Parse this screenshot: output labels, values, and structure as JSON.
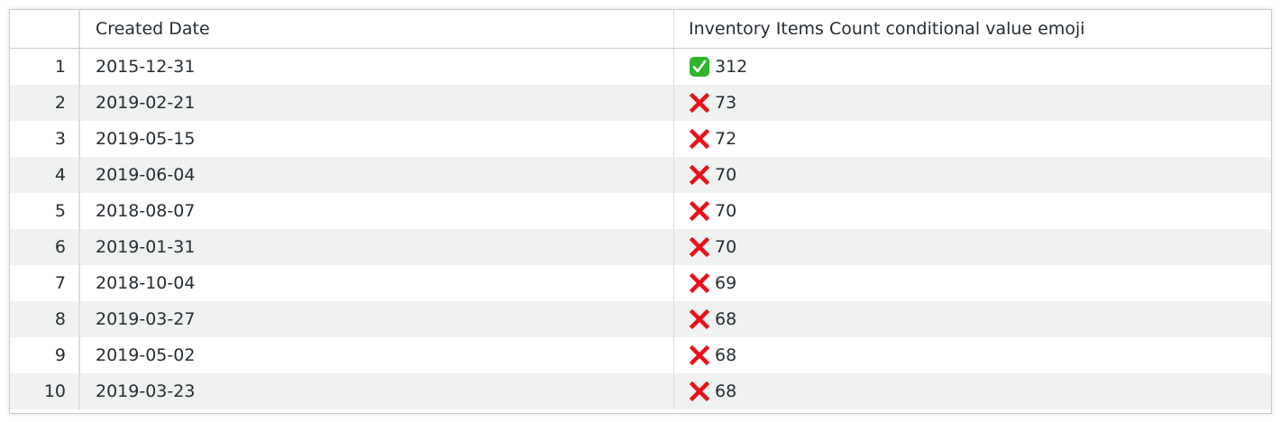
{
  "table": {
    "columns": [
      "",
      "Created Date",
      "Inventory Items Count conditional value emoji"
    ],
    "rows": [
      {
        "index": "1",
        "date": "2015-12-31",
        "icon": "check-mark-button-icon",
        "value": "312"
      },
      {
        "index": "2",
        "date": "2019-02-21",
        "icon": "cross-mark-icon",
        "value": "73"
      },
      {
        "index": "3",
        "date": "2019-05-15",
        "icon": "cross-mark-icon",
        "value": "72"
      },
      {
        "index": "4",
        "date": "2019-06-04",
        "icon": "cross-mark-icon",
        "value": "70"
      },
      {
        "index": "5",
        "date": "2018-08-07",
        "icon": "cross-mark-icon",
        "value": "70"
      },
      {
        "index": "6",
        "date": "2019-01-31",
        "icon": "cross-mark-icon",
        "value": "70"
      },
      {
        "index": "7",
        "date": "2018-10-04",
        "icon": "cross-mark-icon",
        "value": "69"
      },
      {
        "index": "8",
        "date": "2019-03-27",
        "icon": "cross-mark-icon",
        "value": "68"
      },
      {
        "index": "9",
        "date": "2019-05-02",
        "icon": "cross-mark-icon",
        "value": "68"
      },
      {
        "index": "10",
        "date": "2019-03-23",
        "icon": "cross-mark-icon",
        "value": "68"
      }
    ]
  },
  "colors": {
    "check": "#2fb52b",
    "cross": "#e8101c",
    "stripe": "#f0f1f1",
    "border": "#c9cccf"
  }
}
